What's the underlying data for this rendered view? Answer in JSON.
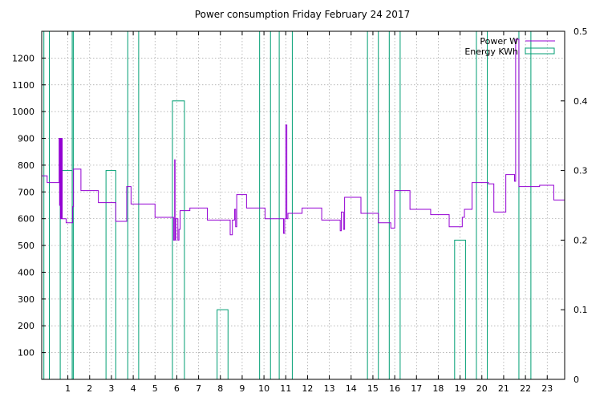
{
  "chart_data": {
    "type": "line",
    "title": "Power consumption Friday February 24 2017",
    "xlabel": "",
    "ylabel": "",
    "xlim": [
      -0.2,
      23.8
    ],
    "ylim": [
      0,
      1300
    ],
    "y2lim": [
      0,
      0.5
    ],
    "x_ticks": [
      "1",
      "2",
      "3",
      "4",
      "5",
      "6",
      "7",
      "8",
      "9",
      "10",
      "11",
      "12",
      "13",
      "14",
      "15",
      "16",
      "17",
      "18",
      "19",
      "20",
      "21",
      "22",
      "23"
    ],
    "y_ticks": [
      "100",
      "200",
      "300",
      "400",
      "500",
      "600",
      "700",
      "800",
      "900",
      "1000",
      "1100",
      "1200"
    ],
    "y2_ticks": [
      "0",
      "0.1",
      "0.2",
      "0.3",
      "0.4",
      "0.5"
    ],
    "grid": true,
    "legend_position": "top-right",
    "series": [
      {
        "name": "Power W",
        "axis": "y",
        "style": "step",
        "color": "#9400d3",
        "x": [
          -0.2,
          0.05,
          0.6,
          0.62,
          0.64,
          0.66,
          0.68,
          0.7,
          0.72,
          0.74,
          0.92,
          1.22,
          1.26,
          1.6,
          2.4,
          3.2,
          3.7,
          3.9,
          4.3,
          5.0,
          5.85,
          5.9,
          5.92,
          5.95,
          6.05,
          6.1,
          6.15,
          6.6,
          7.4,
          8.45,
          8.55,
          8.65,
          8.7,
          8.75,
          9.2,
          10.05,
          10.6,
          10.9,
          10.95,
          11.0,
          11.05,
          11.1,
          11.75,
          12.65,
          13.5,
          13.55,
          13.65,
          13.7,
          14.45,
          15.25,
          15.75,
          15.82,
          16.0,
          16.7,
          17.65,
          18.5,
          19.1,
          19.2,
          19.55,
          20.3,
          20.55,
          21.1,
          21.5,
          21.55,
          21.7,
          22.65,
          23.3,
          23.8
        ],
        "y": [
          760,
          735,
          900,
          650,
          900,
          600,
          900,
          600,
          900,
          600,
          585,
          645,
          785,
          705,
          660,
          590,
          720,
          655,
          655,
          605,
          520,
          820,
          520,
          600,
          520,
          560,
          630,
          640,
          595,
          540,
          595,
          635,
          570,
          690,
          640,
          600,
          600,
          545,
          600,
          950,
          600,
          620,
          640,
          595,
          555,
          625,
          560,
          680,
          620,
          585,
          585,
          565,
          705,
          635,
          615,
          570,
          605,
          635,
          735,
          730,
          625,
          765,
          740,
          1270,
          720,
          725,
          670,
          730
        ]
      },
      {
        "name": "Energy KWh",
        "axis": "y2",
        "style": "boxes",
        "color": "#009e73",
        "bars": [
          {
            "x0": -0.1,
            "x1": 0.15,
            "value": 0.5
          },
          {
            "x0": 0.65,
            "x1": 1.2,
            "value": 0.3
          },
          {
            "x0": 1.2,
            "x1": 1.25,
            "value": 0.5
          },
          {
            "x0": 2.75,
            "x1": 3.2,
            "value": 0.3
          },
          {
            "x0": 3.75,
            "x1": 4.25,
            "value": 0.5
          },
          {
            "x0": 5.8,
            "x1": 6.35,
            "value": 0.4
          },
          {
            "x0": 7.85,
            "x1": 8.35,
            "value": 0.1
          },
          {
            "x0": 9.8,
            "x1": 10.3,
            "value": 0.5
          },
          {
            "x0": 10.7,
            "x1": 11.3,
            "value": 0.5
          },
          {
            "x0": 14.75,
            "x1": 15.25,
            "value": 0.5
          },
          {
            "x0": 15.75,
            "x1": 16.25,
            "value": 0.5
          },
          {
            "x0": 18.75,
            "x1": 19.25,
            "value": 0.2
          },
          {
            "x0": 19.75,
            "x1": 20.25,
            "value": 0.5
          },
          {
            "x0": 21.7,
            "x1": 22.25,
            "value": 0.5
          }
        ]
      }
    ]
  }
}
